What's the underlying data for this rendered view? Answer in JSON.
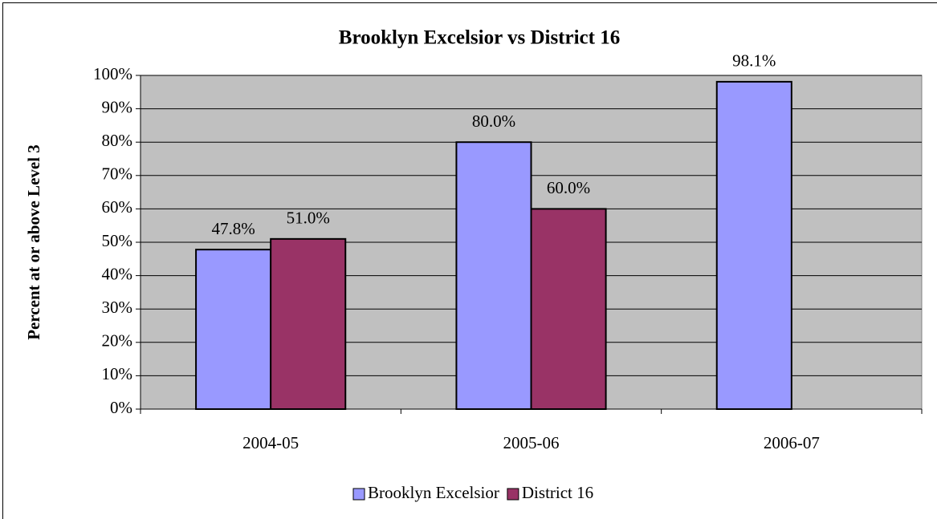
{
  "chart_data": {
    "type": "bar",
    "title": "Brooklyn Excelsior vs District 16",
    "y_label": "Percent at or above Level 3",
    "categories": [
      "2004-05",
      "2005-06",
      "2006-07"
    ],
    "series": [
      {
        "name": "Brooklyn Excelsior",
        "color": "#9999ff",
        "values": [
          47.8,
          80.0,
          98.1
        ],
        "value_labels": [
          "47.8%",
          "80.0%",
          "98.1%"
        ]
      },
      {
        "name": "District 16",
        "color": "#993366",
        "values": [
          51.0,
          60.0,
          null
        ],
        "value_labels": [
          "51.0%",
          "60.0%",
          null
        ]
      }
    ],
    "ylim": [
      0,
      100
    ],
    "yticks": [
      {
        "value": 0,
        "label": "0%"
      },
      {
        "value": 10,
        "label": "10%"
      },
      {
        "value": 20,
        "label": "20%"
      },
      {
        "value": 30,
        "label": "30%"
      },
      {
        "value": 40,
        "label": "40%"
      },
      {
        "value": 50,
        "label": "50%"
      },
      {
        "value": 60,
        "label": "60%"
      },
      {
        "value": 70,
        "label": "70%"
      },
      {
        "value": 80,
        "label": "80%"
      },
      {
        "value": 90,
        "label": "90%"
      },
      {
        "value": 100,
        "label": "100%"
      }
    ],
    "grid": true,
    "legend": "bottom",
    "plot_background": "#c0c0c0"
  }
}
